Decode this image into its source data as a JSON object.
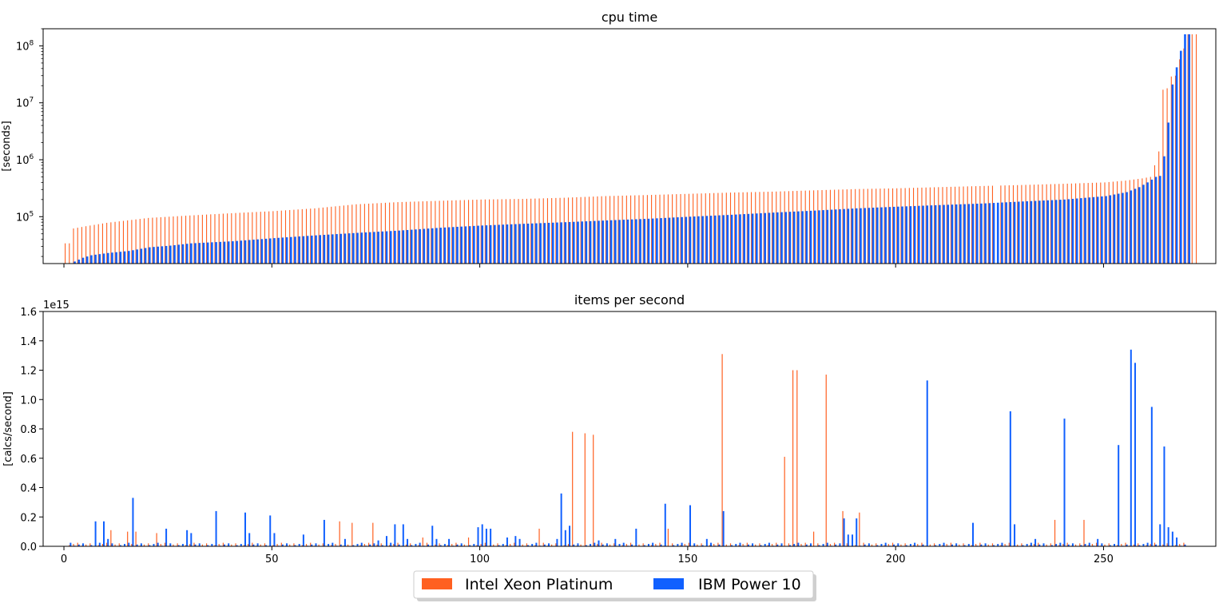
{
  "chart_data": [
    {
      "type": "bar",
      "title": "cpu time",
      "ylabel": "[seconds]",
      "yscale": "log",
      "ylim": [
        15000,
        200000000
      ],
      "xlim": [
        -5,
        277
      ],
      "xticks": [
        0,
        50,
        100,
        150,
        200,
        250
      ],
      "xtick_labels_visible": false,
      "yticks": [
        {
          "value": 100000,
          "base": "10",
          "exp": "5"
        },
        {
          "value": 1000000,
          "base": "10",
          "exp": "6"
        },
        {
          "value": 10000000,
          "base": "10",
          "exp": "7"
        },
        {
          "value": 100000000,
          "base": "10",
          "exp": "8"
        }
      ],
      "bar_offset": 0.3,
      "series": [
        {
          "name": "Intel Xeon Platinum",
          "color": "#ff6020",
          "curve": [
            [
              0,
              34000
            ],
            [
              1,
              34000
            ],
            [
              2,
              62000
            ],
            [
              5,
              68000
            ],
            [
              10,
              78000
            ],
            [
              20,
              95000
            ],
            [
              30,
              105000
            ],
            [
              40,
              115000
            ],
            [
              50,
              125000
            ],
            [
              60,
              140000
            ],
            [
              70,
              165000
            ],
            [
              80,
              180000
            ],
            [
              90,
              190000
            ],
            [
              100,
              200000
            ],
            [
              110,
              205000
            ],
            [
              120,
              215000
            ],
            [
              130,
              230000
            ],
            [
              140,
              240000
            ],
            [
              150,
              252000
            ],
            [
              160,
              265000
            ],
            [
              170,
              275000
            ],
            [
              180,
              290000
            ],
            [
              190,
              305000
            ],
            [
              200,
              315000
            ],
            [
              210,
              330000
            ],
            [
              220,
              345000
            ],
            [
              230,
              360000
            ],
            [
              240,
              378000
            ],
            [
              250,
              400000
            ],
            [
              255,
              430000
            ],
            [
              259,
              470000
            ],
            [
              261,
              500000
            ],
            [
              262,
              800000
            ],
            [
              263,
              1400000
            ],
            [
              264,
              17000000
            ],
            [
              265,
              18000000
            ],
            [
              266,
              29000000
            ],
            [
              267,
              30000000
            ],
            [
              268,
              58000000
            ],
            [
              269,
              90000000
            ],
            [
              270,
              160000000
            ],
            [
              271,
              160000000
            ],
            [
              272,
              160000000
            ]
          ],
          "gaps": [
            224
          ]
        },
        {
          "name": "IBM Power 10",
          "color": "#1060ff",
          "curve": [
            [
              0,
              14000
            ],
            [
              4,
              19000
            ],
            [
              6,
              21000
            ],
            [
              10,
              23000
            ],
            [
              15,
              25000
            ],
            [
              20,
              29000
            ],
            [
              25,
              31000
            ],
            [
              30,
              34000
            ],
            [
              40,
              37000
            ],
            [
              50,
              42000
            ],
            [
              60,
              47000
            ],
            [
              70,
              52000
            ],
            [
              80,
              57000
            ],
            [
              90,
              64000
            ],
            [
              100,
              70000
            ],
            [
              110,
              75000
            ],
            [
              120,
              80000
            ],
            [
              130,
              86000
            ],
            [
              140,
              92000
            ],
            [
              150,
              100000
            ],
            [
              160,
              108000
            ],
            [
              170,
              118000
            ],
            [
              180,
              128000
            ],
            [
              190,
              140000
            ],
            [
              200,
              150000
            ],
            [
              210,
              160000
            ],
            [
              220,
              170000
            ],
            [
              230,
              185000
            ],
            [
              240,
              200000
            ],
            [
              250,
              230000
            ],
            [
              255,
              270000
            ],
            [
              258,
              330000
            ],
            [
              260,
              400000
            ],
            [
              262,
              500000
            ],
            [
              263,
              520000
            ],
            [
              264,
              1150000
            ],
            [
              265,
              4500000
            ],
            [
              266,
              21000000
            ],
            [
              267,
              42000000
            ],
            [
              268,
              82000000
            ],
            [
              269,
              160000000
            ],
            [
              270,
              160000000
            ]
          ]
        }
      ]
    },
    {
      "type": "bar",
      "title": "items per second",
      "ylabel": "[calcs/second]",
      "ylim": [
        0,
        1.6
      ],
      "xlim": [
        -5,
        277
      ],
      "offset_text": "1e15",
      "xticks": [
        0,
        50,
        100,
        150,
        200,
        250
      ],
      "yticks": [
        "0.0",
        "0.2",
        "0.4",
        "0.6",
        "0.8",
        "1.0",
        "1.2",
        "1.4",
        "1.6"
      ],
      "bar_offset": 0.3,
      "series": [
        {
          "name": "Intel Xeon Platinum",
          "color": "#ff6020",
          "points": [
            [
              11,
              0.11
            ],
            [
              15,
              0.1
            ],
            [
              17,
              0.1
            ],
            [
              22,
              0.09
            ],
            [
              66,
              0.17
            ],
            [
              69,
              0.16
            ],
            [
              74,
              0.16
            ],
            [
              86,
              0.06
            ],
            [
              97,
              0.06
            ],
            [
              114,
              0.12
            ],
            [
              122,
              0.78
            ],
            [
              125,
              0.77
            ],
            [
              127,
              0.76
            ],
            [
              145,
              0.12
            ],
            [
              158,
              1.31
            ],
            [
              173,
              0.61
            ],
            [
              175,
              1.2
            ],
            [
              176,
              1.2
            ],
            [
              180,
              0.1
            ],
            [
              183,
              1.17
            ],
            [
              187,
              0.24
            ],
            [
              191,
              0.23
            ],
            [
              238,
              0.18
            ],
            [
              245,
              0.18
            ]
          ]
        },
        {
          "name": "IBM Power 10",
          "color": "#1060ff",
          "points": [
            [
              7,
              0.17
            ],
            [
              9,
              0.17
            ],
            [
              10,
              0.05
            ],
            [
              16,
              0.33
            ],
            [
              24,
              0.12
            ],
            [
              29,
              0.11
            ],
            [
              30,
              0.09
            ],
            [
              36,
              0.24
            ],
            [
              43,
              0.23
            ],
            [
              44,
              0.09
            ],
            [
              49,
              0.21
            ],
            [
              50,
              0.09
            ],
            [
              57,
              0.08
            ],
            [
              62,
              0.18
            ],
            [
              67,
              0.05
            ],
            [
              75,
              0.04
            ],
            [
              77,
              0.07
            ],
            [
              79,
              0.15
            ],
            [
              81,
              0.15
            ],
            [
              82,
              0.05
            ],
            [
              88,
              0.14
            ],
            [
              89,
              0.05
            ],
            [
              92,
              0.05
            ],
            [
              99,
              0.13
            ],
            [
              100,
              0.15
            ],
            [
              101,
              0.12
            ],
            [
              102,
              0.12
            ],
            [
              106,
              0.06
            ],
            [
              108,
              0.07
            ],
            [
              109,
              0.05
            ],
            [
              118,
              0.05
            ],
            [
              119,
              0.36
            ],
            [
              120,
              0.11
            ],
            [
              121,
              0.14
            ],
            [
              128,
              0.04
            ],
            [
              132,
              0.05
            ],
            [
              137,
              0.12
            ],
            [
              144,
              0.29
            ],
            [
              150,
              0.28
            ],
            [
              154,
              0.05
            ],
            [
              158,
              0.24
            ],
            [
              187,
              0.19
            ],
            [
              188,
              0.08
            ],
            [
              189,
              0.08
            ],
            [
              190,
              0.19
            ],
            [
              207,
              1.13
            ],
            [
              218,
              0.16
            ],
            [
              227,
              0.92
            ],
            [
              228,
              0.15
            ],
            [
              233,
              0.05
            ],
            [
              240,
              0.87
            ],
            [
              248,
              0.05
            ],
            [
              253,
              0.69
            ],
            [
              256,
              1.34
            ],
            [
              257,
              1.25
            ],
            [
              261,
              0.95
            ],
            [
              263,
              0.15
            ],
            [
              264,
              0.68
            ],
            [
              265,
              0.13
            ],
            [
              266,
              0.1
            ],
            [
              267,
              0.06
            ]
          ]
        }
      ]
    }
  ],
  "legend": {
    "placement": "bottom-center",
    "entries": [
      {
        "label": "Intel Xeon Platinum",
        "color": "#ff6020"
      },
      {
        "label": "IBM Power 10",
        "color": "#1060ff"
      }
    ]
  }
}
